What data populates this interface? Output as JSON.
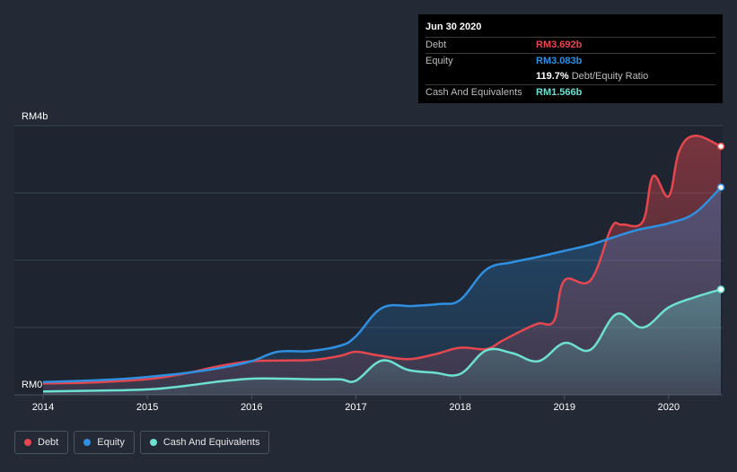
{
  "chart_data": {
    "type": "area",
    "y_unit_labels": {
      "top": "RM4b",
      "bottom": "RM0"
    },
    "ylim": [
      0,
      4.0
    ],
    "xlim": [
      2014.0,
      2020.5
    ],
    "x_ticks": [
      "2014",
      "2015",
      "2016",
      "2017",
      "2018",
      "2019",
      "2020"
    ],
    "series": [
      {
        "name": "Debt",
        "color": "#e5474f",
        "x": [
          2014.0,
          2014.4,
          2014.8,
          2015.1,
          2015.4,
          2015.7,
          2016.0,
          2016.3,
          2016.6,
          2016.85,
          2017.0,
          2017.2,
          2017.5,
          2017.75,
          2018.0,
          2018.25,
          2018.4,
          2018.6,
          2018.75,
          2018.9,
          2019.0,
          2019.25,
          2019.45,
          2019.55,
          2019.75,
          2019.85,
          2020.0,
          2020.1,
          2020.25,
          2020.5
        ],
        "values": [
          0.17,
          0.18,
          0.21,
          0.25,
          0.33,
          0.43,
          0.5,
          0.51,
          0.52,
          0.58,
          0.64,
          0.59,
          0.53,
          0.6,
          0.7,
          0.68,
          0.8,
          0.96,
          1.06,
          1.1,
          1.7,
          1.7,
          2.48,
          2.53,
          2.57,
          3.25,
          2.95,
          3.62,
          3.85,
          3.692
        ]
      },
      {
        "name": "Equity",
        "color": "#2f8fe0",
        "x": [
          2014.0,
          2014.4,
          2014.8,
          2015.1,
          2015.4,
          2015.7,
          2016.0,
          2016.25,
          2016.55,
          2016.85,
          2017.0,
          2017.25,
          2017.55,
          2017.8,
          2018.0,
          2018.25,
          2018.5,
          2018.75,
          2019.0,
          2019.25,
          2019.45,
          2019.7,
          2020.0,
          2020.25,
          2020.5
        ],
        "values": [
          0.19,
          0.21,
          0.24,
          0.28,
          0.33,
          0.4,
          0.5,
          0.64,
          0.65,
          0.73,
          0.87,
          1.29,
          1.32,
          1.35,
          1.41,
          1.86,
          1.97,
          2.05,
          2.14,
          2.23,
          2.33,
          2.45,
          2.55,
          2.7,
          3.083
        ]
      },
      {
        "name": "Cash And Equivalents",
        "color": "#6ee0d2",
        "x": [
          2014.0,
          2014.4,
          2014.8,
          2015.1,
          2015.4,
          2015.7,
          2016.0,
          2016.3,
          2016.6,
          2016.85,
          2017.0,
          2017.25,
          2017.5,
          2017.75,
          2018.0,
          2018.25,
          2018.5,
          2018.75,
          2019.0,
          2019.25,
          2019.5,
          2019.75,
          2020.0,
          2020.25,
          2020.5
        ],
        "values": [
          0.05,
          0.06,
          0.07,
          0.09,
          0.14,
          0.2,
          0.24,
          0.24,
          0.23,
          0.23,
          0.21,
          0.51,
          0.37,
          0.33,
          0.31,
          0.66,
          0.62,
          0.5,
          0.77,
          0.67,
          1.2,
          1.0,
          1.3,
          1.45,
          1.566
        ]
      }
    ]
  },
  "tooltip": {
    "date": "Jun 30 2020",
    "debt_label": "Debt",
    "debt_value": "RM3.692b",
    "equity_label": "Equity",
    "equity_value": "RM3.083b",
    "ratio_value": "119.7%",
    "ratio_label": "Debt/Equity Ratio",
    "cash_label": "Cash And Equivalents",
    "cash_value": "RM1.566b"
  },
  "legend": [
    {
      "label": "Debt",
      "color": "#e5474f"
    },
    {
      "label": "Equity",
      "color": "#2f8fe0"
    },
    {
      "label": "Cash And Equivalents",
      "color": "#6ee0d2"
    }
  ]
}
